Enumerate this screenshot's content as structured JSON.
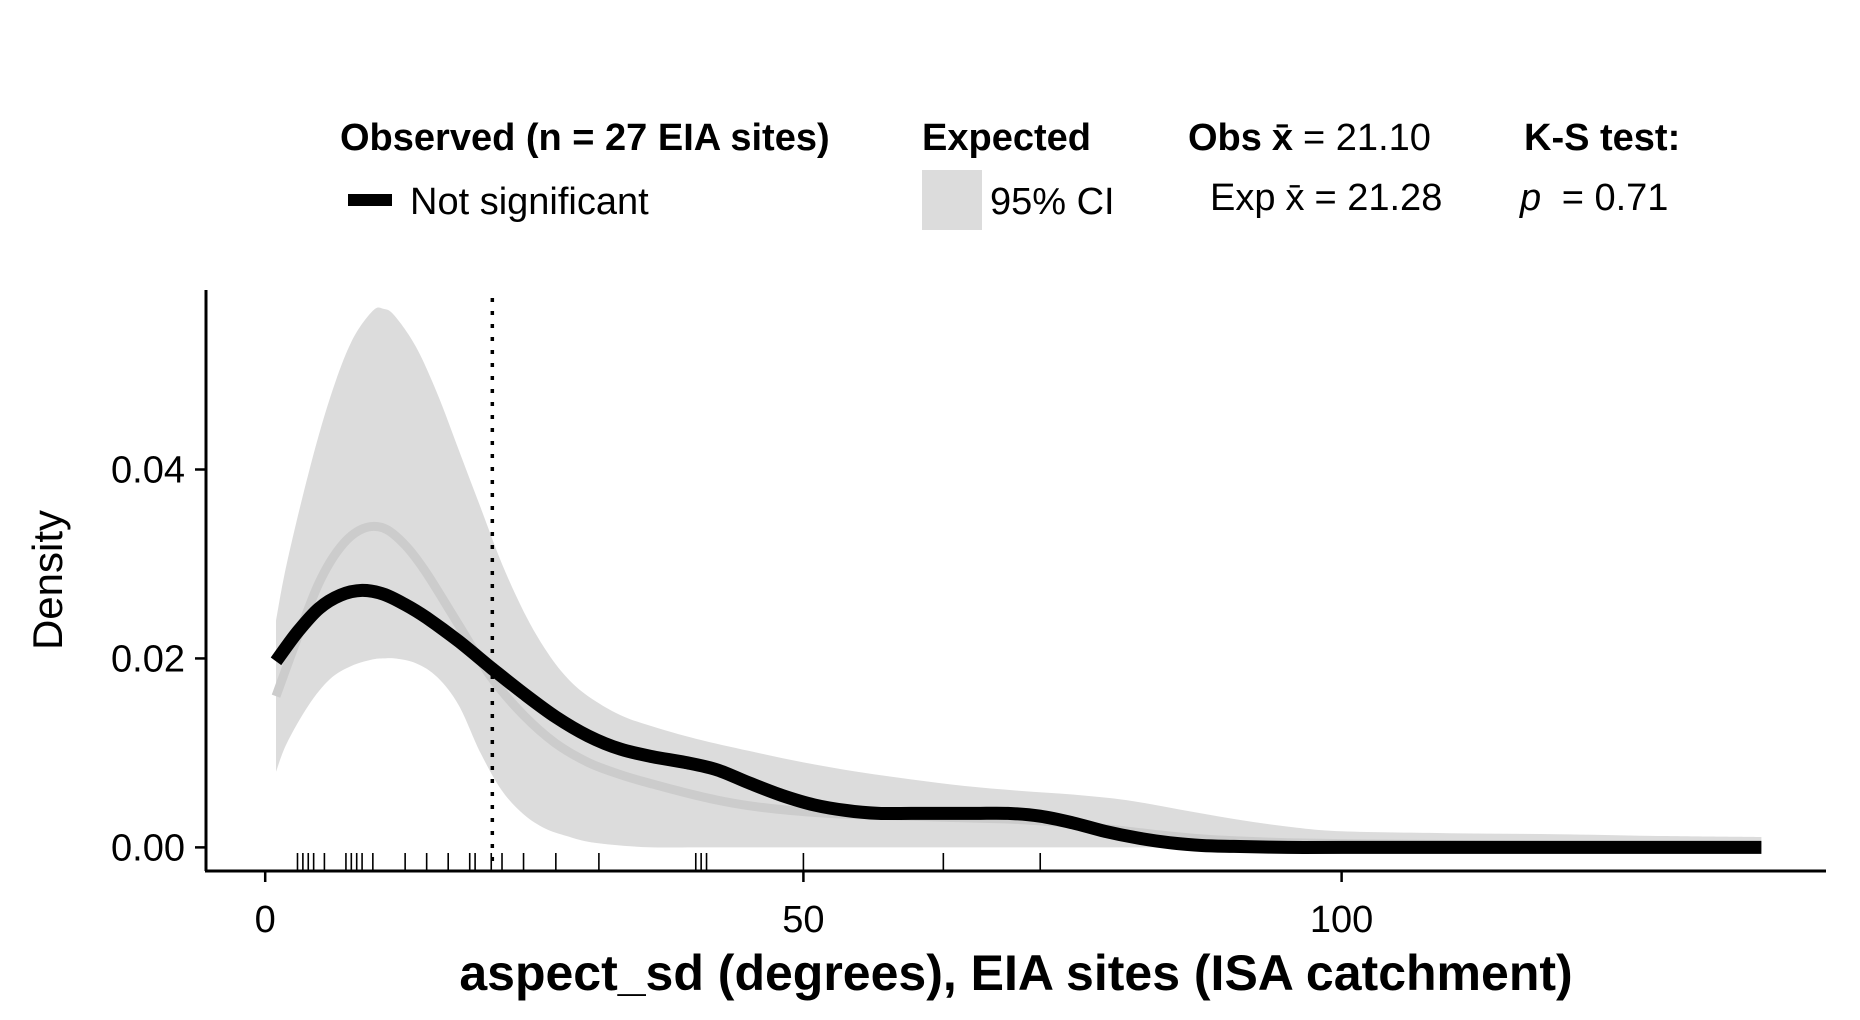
{
  "chart_data": {
    "type": "line",
    "title": "",
    "xlabel": "aspect_sd (degrees), EIA sites (ISA catchment)",
    "ylabel": "Density",
    "xlim": [
      -5.5,
      145
    ],
    "ylim": [
      -0.0025,
      0.059
    ],
    "x_ticks": [
      0,
      50,
      100
    ],
    "x_tick_labels": [
      "0",
      "50",
      "100"
    ],
    "y_ticks": [
      0.0,
      0.02,
      0.04
    ],
    "y_tick_labels": [
      "0.00",
      "0.02",
      "0.04"
    ],
    "grid": false,
    "legend": {
      "placement": "top",
      "observed_title": "Observed (n = 27 EIA sites)",
      "observed_entry": "Not significant",
      "expected_title": "Expected",
      "expected_entry": "95% CI",
      "obs_mean_label": "Obs",
      "obs_mean_value": "= 21.10",
      "exp_mean_label": "Exp",
      "exp_mean_value": "= 21.28",
      "xbar_symbol": "x̄",
      "ks_title": "K-S test:",
      "ks_p_symbol": "p",
      "ks_p_value": " = 0.71"
    },
    "observed_mean": 21.1,
    "expected_mean": 21.28,
    "ks_p": 0.71,
    "series": [
      {
        "name": "Not significant",
        "role": "observed",
        "color": "#000000",
        "x": [
          1,
          3,
          5,
          7,
          9,
          11,
          13,
          15,
          18,
          21,
          24,
          27,
          30,
          33,
          36,
          39,
          42,
          45,
          48,
          51,
          54,
          57,
          60,
          63,
          66,
          69,
          72,
          75,
          78,
          81,
          84,
          87,
          90,
          95,
          100,
          110,
          120,
          130,
          139
        ],
        "y": [
          0.0197,
          0.0228,
          0.0253,
          0.0267,
          0.0272,
          0.0268,
          0.0257,
          0.0243,
          0.0218,
          0.019,
          0.0163,
          0.0138,
          0.0118,
          0.0104,
          0.0096,
          0.009,
          0.0082,
          0.0068,
          0.0055,
          0.0045,
          0.0039,
          0.0036,
          0.0036,
          0.0036,
          0.0036,
          0.0036,
          0.0033,
          0.0026,
          0.0017,
          0.001,
          0.0005,
          0.0002,
          0.0001,
          0.0,
          0.0,
          0.0,
          0.0,
          0.0,
          0.0
        ]
      },
      {
        "name": "Expected mean",
        "role": "expected_mean",
        "color": "#cccccc",
        "x": [
          1,
          3,
          5,
          7,
          9,
          11,
          13,
          15,
          18,
          21,
          24,
          27,
          30,
          33,
          36,
          39,
          42,
          45,
          48,
          51,
          54,
          57,
          60,
          63,
          66,
          69,
          72,
          75,
          78,
          81,
          84,
          87,
          90,
          95,
          100,
          110,
          120,
          130,
          139
        ],
        "y": [
          0.016,
          0.0222,
          0.028,
          0.0318,
          0.0337,
          0.0338,
          0.032,
          0.029,
          0.0235,
          0.018,
          0.014,
          0.011,
          0.009,
          0.0077,
          0.0067,
          0.0058,
          0.005,
          0.0044,
          0.004,
          0.0037,
          0.0035,
          0.0034,
          0.0033,
          0.0032,
          0.0031,
          0.003,
          0.0028,
          0.0025,
          0.002,
          0.0016,
          0.0012,
          0.0009,
          0.0007,
          0.0005,
          0.0004,
          0.0003,
          0.0002,
          0.0002,
          0.0001
        ]
      }
    ],
    "ci_band": {
      "name": "95% CI",
      "color": "#dcdcdc",
      "x": [
        1,
        2,
        4,
        6,
        8,
        10,
        11,
        12,
        14,
        16,
        18,
        20,
        22,
        24,
        26,
        28,
        30,
        33,
        36,
        40,
        45,
        50,
        55,
        60,
        65,
        70,
        75,
        80,
        85,
        90,
        95,
        100,
        110,
        120,
        130,
        139
      ],
      "upper": [
        0.024,
        0.03,
        0.0395,
        0.0475,
        0.0535,
        0.0568,
        0.057,
        0.0563,
        0.053,
        0.048,
        0.042,
        0.036,
        0.03,
        0.025,
        0.021,
        0.018,
        0.016,
        0.014,
        0.0128,
        0.0115,
        0.0102,
        0.009,
        0.008,
        0.0072,
        0.0065,
        0.006,
        0.0056,
        0.005,
        0.004,
        0.003,
        0.0022,
        0.0017,
        0.0015,
        0.0014,
        0.0012,
        0.0011
      ],
      "lower": [
        0.008,
        0.011,
        0.015,
        0.0178,
        0.0192,
        0.0199,
        0.02,
        0.02,
        0.0195,
        0.018,
        0.015,
        0.01,
        0.006,
        0.0035,
        0.002,
        0.0012,
        0.0006,
        0.0002,
        0.0,
        0.0,
        0.0,
        0.0,
        0.0,
        0.0,
        0.0,
        0.0,
        0.0,
        0.0,
        0.0,
        0.0,
        0.0,
        0.0,
        0.0,
        0.0,
        0.0,
        0.0
      ]
    },
    "rug": [
      3,
      3.5,
      4,
      4.5,
      5.5,
      7.5,
      8,
      8.5,
      9,
      10,
      13,
      15,
      17,
      19,
      19.5,
      21,
      22,
      24,
      27,
      31,
      40,
      40.5,
      41,
      50,
      63,
      72
    ]
  }
}
